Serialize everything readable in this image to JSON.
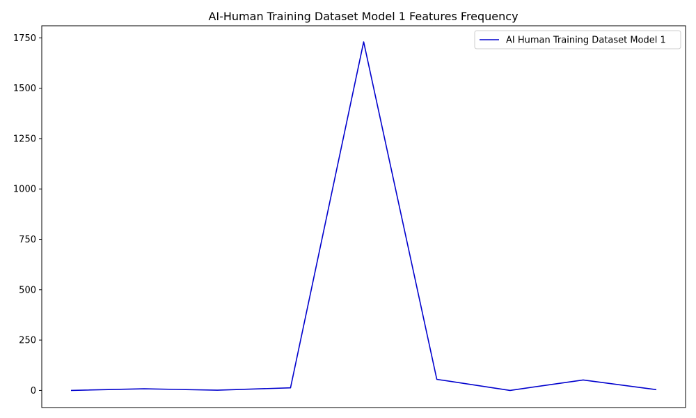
{
  "chart_data": {
    "type": "line",
    "title": "AI-Human Training Dataset Model 1 Features Frequency",
    "xlabel": "",
    "ylabel": "",
    "x_ticks_visible": false,
    "ylim": [
      -85,
      1810
    ],
    "yticks": [
      0,
      250,
      500,
      750,
      1000,
      1250,
      1500,
      1750
    ],
    "grid": false,
    "legend_position": "top-right",
    "series": [
      {
        "name": "AI Human Training Dataset Model 1",
        "color": "#0000cd",
        "values": [
          0,
          8,
          1,
          13,
          1730,
          55,
          0,
          52,
          4
        ]
      }
    ]
  }
}
